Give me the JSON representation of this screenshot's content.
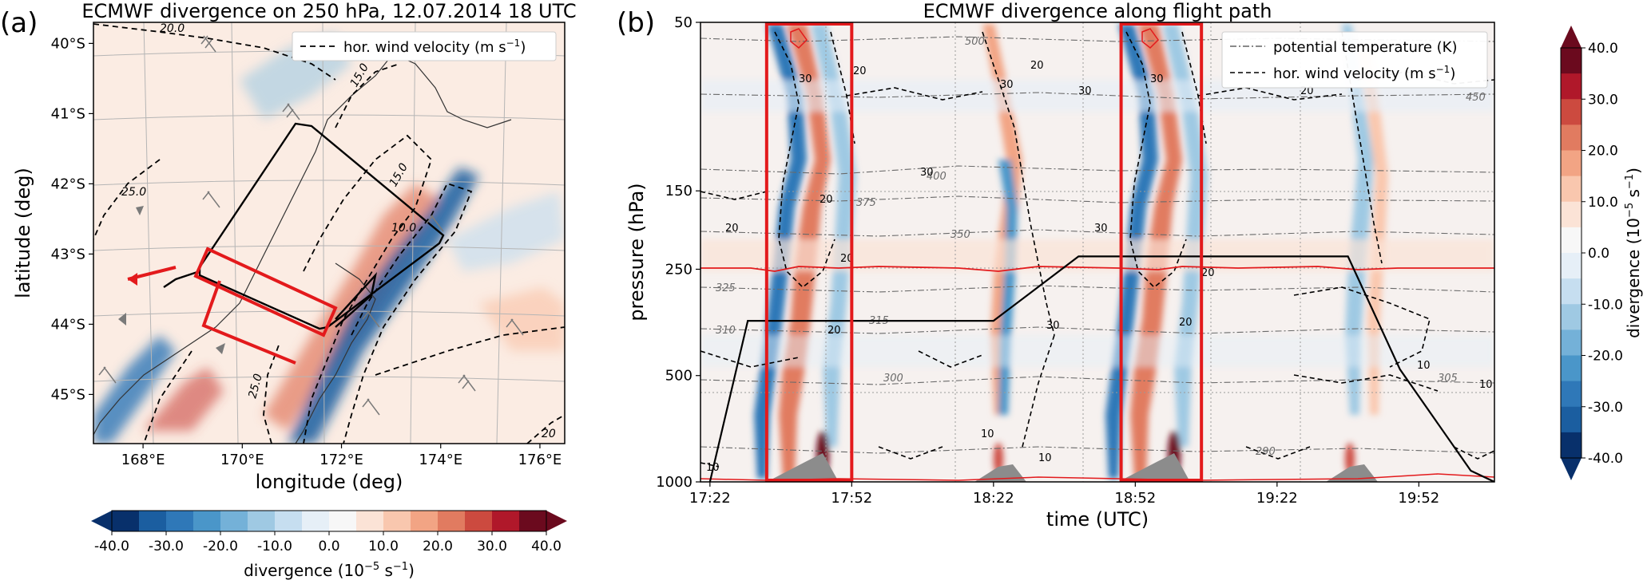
{
  "colors": {
    "div_scale": [
      "#08306b",
      "#1b5ea0",
      "#2f78b8",
      "#4a96c9",
      "#74b1d8",
      "#9fc9e3",
      "#c6def0",
      "#e6eff7",
      "#f7f7f7",
      "#fbe3d6",
      "#f9c7ae",
      "#f2a484",
      "#e17b60",
      "#cc4a3f",
      "#b0182a",
      "#6b0a1e"
    ],
    "flight_track": "#000000",
    "highlight_box": "#e31a1c",
    "tropopause": "#e31a1c",
    "orography": "#8c8c8c"
  },
  "chart_data": [
    {
      "panel": "(a)",
      "type": "heatmap",
      "title": "ECMWF divergence on 250 hPa, 12.07.2014 18 UTC",
      "xlabel": "longitude (deg)",
      "ylabel": "latitude (deg)",
      "x_ticks": [
        "168°E",
        "170°E",
        "172°E",
        "174°E",
        "176°E"
      ],
      "x_tick_values": [
        168,
        170,
        172,
        174,
        176
      ],
      "y_ticks": [
        "40°S",
        "41°S",
        "42°S",
        "43°S",
        "44°S",
        "45°S"
      ],
      "y_tick_values": [
        -40,
        -41,
        -42,
        -43,
        -44,
        -45
      ],
      "xlim": [
        167,
        176.5
      ],
      "ylim": [
        -45.7,
        -39.7
      ],
      "legend": [
        {
          "name": "hor. wind velocity (m s$^{-1}$)",
          "style": "dashed"
        }
      ],
      "legend_label": "hor. wind velocity (m s",
      "legend_sup": "−1",
      "legend_close": ")",
      "contour_labels": [
        "20.0",
        "15.0",
        "25.0",
        "15.0",
        "10.0",
        "25.0",
        "20"
      ],
      "colorbar": {
        "label": "divergence (10",
        "label_sup": "−5",
        "label_unit": " s",
        "label_sup2": "−1",
        "label_close": ")",
        "ticks": [
          "-40.0",
          "-30.0",
          "-20.0",
          "-10.0",
          "0.0",
          "10.0",
          "20.0",
          "30.0",
          "40.0"
        ],
        "range": [
          -40,
          40
        ]
      }
    },
    {
      "panel": "(b)",
      "type": "heatmap",
      "title": "ECMWF divergence along flight path",
      "xlabel": "time (UTC)",
      "ylabel": "pressure (hPa)",
      "x_ticks": [
        "17:22",
        "17:52",
        "18:22",
        "18:52",
        "19:22",
        "19:52"
      ],
      "x_tick_values_min": [
        0,
        30,
        60,
        90,
        120,
        150
      ],
      "xlim_min": [
        -2,
        166
      ],
      "y_ticks": [
        "50",
        "150",
        "250",
        "500",
        "1000"
      ],
      "y_tick_values": [
        50,
        150,
        250,
        500,
        1000
      ],
      "ylim": [
        1000,
        50
      ],
      "y_scale": "log",
      "legend": [
        {
          "name": "potential temperature (K)",
          "style": "dashdot"
        },
        {
          "name": "hor. wind velocity (m s$^{-1}$)",
          "style": "dashed"
        }
      ],
      "legend_pt": "potential temperature (K)",
      "legend_wind": "hor. wind velocity (m s",
      "legend_sup": "−1",
      "legend_close": ")",
      "theta_labels": [
        "500",
        "450",
        "400",
        "375",
        "350",
        "325",
        "315",
        "310",
        "305",
        "300",
        "290"
      ],
      "wind_labels": [
        "30",
        "20",
        "30",
        "20",
        "30",
        "20",
        "20",
        "30",
        "30",
        "20",
        "20",
        "20",
        "30",
        "20",
        "30",
        "10",
        "10",
        "10",
        "10",
        "10",
        "20"
      ],
      "flight_profile": {
        "time_min": [
          0,
          8,
          60,
          78,
          82,
          135,
          146,
          161,
          166
        ],
        "pressure_hpa": [
          1000,
          350,
          350,
          230,
          230,
          230,
          480,
          930,
          1000
        ]
      },
      "highlight_windows_min": [
        [
          12,
          30
        ],
        [
          87,
          104
        ]
      ],
      "tropopause_hpa": 250,
      "colorbar": {
        "label": "divergence (10",
        "label_sup": "−5",
        "label_unit": " s",
        "label_sup2": "−1",
        "label_close": ")",
        "ticks": [
          "40.0",
          "30.0",
          "20.0",
          "10.0",
          "0.0",
          "-10.0",
          "-20.0",
          "-30.0",
          "-40.0"
        ],
        "range": [
          -40,
          40
        ]
      }
    }
  ]
}
